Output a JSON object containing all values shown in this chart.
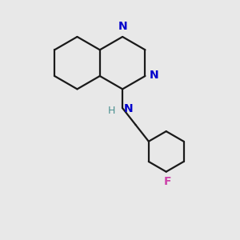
{
  "bg_color": "#e8e8e8",
  "bond_color": "#1a1a1a",
  "n_color": "#0000cc",
  "f_color": "#cc44aa",
  "h_color": "#4a9090",
  "lw": 1.6,
  "fig_size": [
    3.0,
    3.0
  ],
  "dpi": 100,
  "n1_label": "N",
  "n3_label": "N",
  "nh_label": "N",
  "h_label": "H",
  "f_label": "F"
}
